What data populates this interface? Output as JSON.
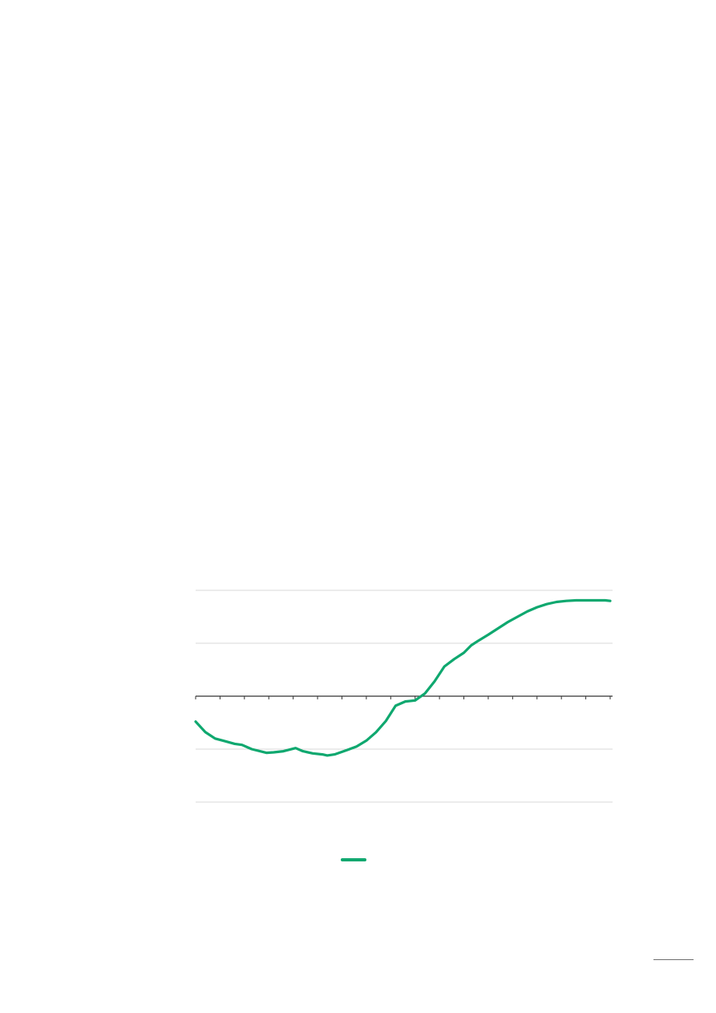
{
  "colors": {
    "series": "#0fa86f",
    "gridline": "#d9d9d9",
    "axis": "#333333",
    "page_rule": "#6e6e6e"
  },
  "chart_data": {
    "type": "line",
    "title": "",
    "xlabel": "",
    "ylabel": "",
    "grid": true,
    "legend": "bottom-center",
    "xlim": [
      0,
      17
    ],
    "ylim": [
      -2,
      2
    ],
    "x_tick_count": 18,
    "y_gridlines": [
      -2,
      -1,
      0,
      1,
      2
    ],
    "series": [
      {
        "color": "#0fa86f",
        "x": [
          0,
          0.4,
          0.8,
          1.2,
          1.6,
          1.9,
          2.3,
          2.9,
          3.2,
          3.6,
          4.1,
          4.4,
          4.8,
          5.2,
          5.4,
          5.7,
          6.2,
          6.6,
          7.0,
          7.4,
          7.8,
          8.2,
          8.6,
          9.0,
          9.4,
          9.8,
          10.2,
          10.6,
          11.0,
          11.3,
          11.6,
          12.0,
          12.4,
          12.8,
          13.2,
          13.6,
          14.0,
          14.4,
          14.8,
          15.2,
          15.6,
          16.0,
          16.4,
          16.8,
          17.0
        ],
        "values": [
          -0.48,
          -0.68,
          -0.8,
          -0.85,
          -0.9,
          -0.92,
          -1.0,
          -1.07,
          -1.06,
          -1.04,
          -0.98,
          -1.04,
          -1.08,
          -1.1,
          -1.12,
          -1.1,
          -1.02,
          -0.95,
          -0.84,
          -0.68,
          -0.47,
          -0.18,
          -0.1,
          -0.08,
          0.05,
          0.28,
          0.56,
          0.7,
          0.82,
          0.96,
          1.05,
          1.16,
          1.28,
          1.4,
          1.5,
          1.6,
          1.68,
          1.74,
          1.78,
          1.8,
          1.81,
          1.81,
          1.81,
          1.81,
          1.8
        ]
      }
    ]
  }
}
